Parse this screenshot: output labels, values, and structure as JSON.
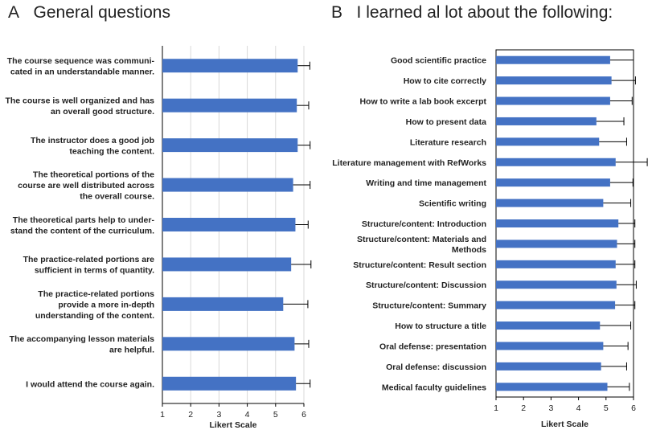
{
  "chart_data": [
    {
      "type": "bar",
      "orientation": "horizontal",
      "panel": "A",
      "title": "General questions",
      "xlabel": "Likert Scale",
      "ylabel": "",
      "xlim": [
        1,
        6
      ],
      "xticks": [
        1,
        2,
        3,
        4,
        5,
        6
      ],
      "grid": true,
      "color": "#4472C4",
      "categories": [
        [
          "The course sequence was communi-",
          "cated in an understandable manner."
        ],
        [
          "The course is well organized and has",
          "an overall good structure."
        ],
        [
          "The instructor does a good job",
          "teaching the content."
        ],
        [
          "The theoretical portions of the",
          "course are well distributed across",
          "the overall course."
        ],
        [
          "The theoretical parts help to under-",
          "stand the content of the curriculum."
        ],
        [
          "The practice-related portions are",
          "sufficient in terms of quantity."
        ],
        [
          "The practice-related portions",
          "provide a more in-depth",
          "understanding of the content."
        ],
        [
          "The accompanying lesson materials",
          "are helpful."
        ],
        [
          "I would attend the course again."
        ]
      ],
      "values": [
        5.78,
        5.75,
        5.78,
        5.62,
        5.7,
        5.55,
        5.27,
        5.67,
        5.72
      ],
      "errors": [
        0.43,
        0.42,
        0.44,
        0.6,
        0.45,
        0.7,
        0.87,
        0.5,
        0.5
      ]
    },
    {
      "type": "bar",
      "orientation": "horizontal",
      "panel": "B",
      "title": "I learned al lot about the following:",
      "xlabel": "Likert Scale",
      "ylabel": "",
      "xlim": [
        1,
        6
      ],
      "xticks": [
        1,
        2,
        3,
        4,
        5,
        6
      ],
      "grid": false,
      "color": "#4472C4",
      "categories": [
        [
          "Good scientific practice"
        ],
        [
          "How to cite correctly"
        ],
        [
          "How to write a lab book excerpt"
        ],
        [
          "How to present data"
        ],
        [
          "Literature research"
        ],
        [
          "Literature management with RefWorks"
        ],
        [
          "Writing and time management"
        ],
        [
          "Scientific writing"
        ],
        [
          "Structure/content: Introduction"
        ],
        [
          "Structure/content: Materials and",
          "Methods"
        ],
        [
          "Structure/content: Result section"
        ],
        [
          "Structure/content: Discussion"
        ],
        [
          "Structure/content: Summary"
        ],
        [
          "How to structure a title"
        ],
        [
          "Oral defense: presentation"
        ],
        [
          "Oral defense: discussion"
        ],
        [
          "Medical faculty guidelines"
        ]
      ],
      "values": [
        5.15,
        5.2,
        5.15,
        4.65,
        4.75,
        5.35,
        5.15,
        4.9,
        5.45,
        5.4,
        5.35,
        5.38,
        5.33,
        4.78,
        4.9,
        4.82,
        5.05
      ],
      "errors": [
        0.85,
        0.87,
        0.8,
        1.0,
        1.0,
        1.15,
        0.83,
        1.0,
        0.6,
        0.65,
        0.7,
        0.72,
        0.72,
        1.12,
        0.9,
        0.93,
        0.8
      ]
    }
  ]
}
